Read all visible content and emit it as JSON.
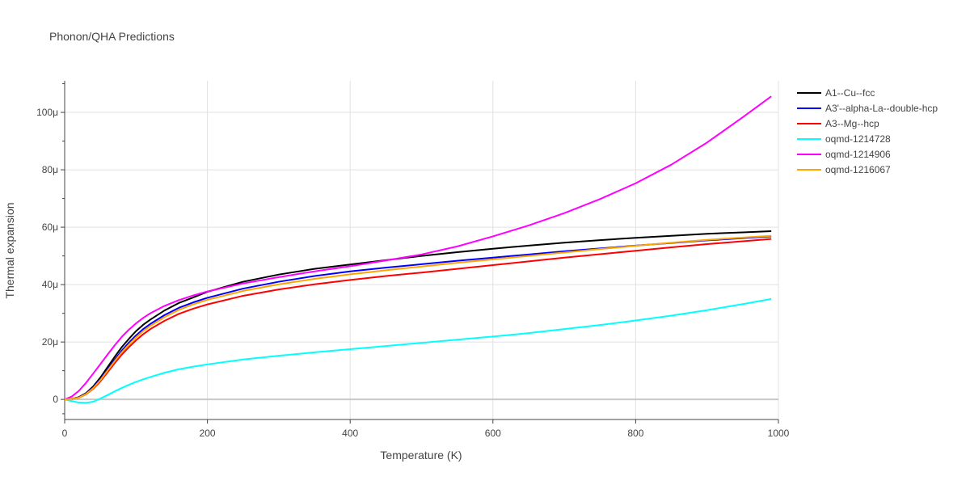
{
  "chart_data": {
    "type": "line",
    "title": "Phonon/QHA Predictions",
    "xlabel": "Temperature (K)",
    "ylabel": "Thermal expansion",
    "xlim": [
      0,
      1000
    ],
    "ylim": [
      -7,
      111
    ],
    "x_ticks": [
      0,
      200,
      400,
      600,
      800,
      1000
    ],
    "x_tick_labels": [
      "0",
      "200",
      "400",
      "600",
      "800",
      "1000"
    ],
    "y_ticks": [
      0,
      20,
      40,
      60,
      80,
      100
    ],
    "y_tick_labels": [
      "0",
      "20μ",
      "40μ",
      "60μ",
      "80μ",
      "100μ"
    ],
    "y_minor_ticks": [
      -5,
      10,
      30,
      50,
      70,
      90,
      110
    ],
    "grid": true,
    "legend_position": "right",
    "series": [
      {
        "name": "A1--Cu--fcc",
        "color": "#000000",
        "x": [
          0,
          10,
          20,
          30,
          40,
          50,
          60,
          70,
          80,
          90,
          100,
          110,
          120,
          140,
          160,
          180,
          200,
          250,
          300,
          350,
          400,
          450,
          500,
          550,
          600,
          650,
          700,
          750,
          800,
          850,
          900,
          950,
          990
        ],
        "y": [
          0,
          0.2,
          0.8,
          2.2,
          4.5,
          7.6,
          11.2,
          14.8,
          18.2,
          21.1,
          23.8,
          26.0,
          27.8,
          31.0,
          33.6,
          35.5,
          37.5,
          41.0,
          43.5,
          45.5,
          47.0,
          48.5,
          50.0,
          51.3,
          52.5,
          53.6,
          54.6,
          55.5,
          56.3,
          57.0,
          57.7,
          58.2,
          58.6
        ]
      },
      {
        "name": "A3'--alpha-La--double-hcp",
        "color": "#0000ff",
        "x": [
          0,
          10,
          20,
          30,
          40,
          50,
          60,
          70,
          80,
          90,
          100,
          110,
          120,
          140,
          160,
          180,
          200,
          250,
          300,
          350,
          400,
          450,
          500,
          550,
          600,
          650,
          700,
          750,
          800,
          850,
          900,
          950,
          990
        ],
        "y": [
          0,
          0.2,
          0.7,
          2.0,
          4.1,
          7.0,
          10.4,
          13.8,
          17.0,
          19.8,
          22.3,
          24.5,
          26.3,
          29.4,
          31.9,
          33.8,
          35.4,
          38.6,
          41.0,
          43.0,
          44.6,
          45.9,
          47.1,
          48.3,
          49.4,
          50.5,
          51.6,
          52.6,
          53.6,
          54.5,
          55.4,
          56.2,
          56.8
        ]
      },
      {
        "name": "A3--Mg--hcp",
        "color": "#ff0000",
        "x": [
          0,
          10,
          20,
          30,
          40,
          50,
          60,
          70,
          80,
          90,
          100,
          110,
          120,
          140,
          160,
          180,
          200,
          250,
          300,
          350,
          400,
          450,
          500,
          550,
          600,
          650,
          700,
          750,
          800,
          850,
          900,
          950,
          990
        ],
        "y": [
          0,
          0.2,
          0.6,
          1.8,
          3.7,
          6.3,
          9.4,
          12.6,
          15.6,
          18.2,
          20.6,
          22.7,
          24.5,
          27.4,
          29.8,
          31.6,
          33.1,
          36.1,
          38.3,
          40.1,
          41.6,
          43.0,
          44.2,
          45.5,
          46.8,
          48.1,
          49.4,
          50.6,
          51.8,
          53.0,
          54.1,
          55.1,
          55.9
        ]
      },
      {
        "name": "oqmd-1214728",
        "color": "#00ffff",
        "x": [
          0,
          10,
          20,
          30,
          40,
          50,
          60,
          70,
          80,
          90,
          100,
          110,
          120,
          140,
          160,
          180,
          200,
          250,
          300,
          350,
          400,
          450,
          500,
          550,
          600,
          650,
          700,
          750,
          800,
          850,
          900,
          950,
          990
        ],
        "y": [
          0,
          -0.6,
          -1.1,
          -1.2,
          -0.8,
          0.3,
          1.5,
          2.8,
          4.0,
          5.1,
          6.1,
          7.0,
          7.8,
          9.3,
          10.5,
          11.4,
          12.2,
          13.9,
          15.2,
          16.4,
          17.5,
          18.6,
          19.7,
          20.8,
          21.9,
          23.1,
          24.5,
          25.9,
          27.5,
          29.2,
          31.1,
          33.2,
          35.0
        ]
      },
      {
        "name": "oqmd-1214906",
        "color": "#ff00ff",
        "x": [
          0,
          10,
          20,
          30,
          40,
          50,
          60,
          70,
          80,
          90,
          100,
          110,
          120,
          140,
          160,
          180,
          200,
          250,
          300,
          350,
          400,
          450,
          500,
          550,
          600,
          650,
          700,
          750,
          800,
          850,
          900,
          950,
          990
        ],
        "y": [
          0,
          1.0,
          3.0,
          5.8,
          9.0,
          12.3,
          15.6,
          18.8,
          21.8,
          24.3,
          26.5,
          28.4,
          30.0,
          32.6,
          34.6,
          36.2,
          37.6,
          40.4,
          42.6,
          44.6,
          46.4,
          48.4,
          50.5,
          53.3,
          56.8,
          60.6,
          64.9,
          69.8,
          75.3,
          81.8,
          89.5,
          98.3,
          105.6
        ]
      },
      {
        "name": "oqmd-1216067",
        "color": "#ffa500",
        "x": [
          0,
          10,
          20,
          30,
          40,
          50,
          60,
          70,
          80,
          90,
          100,
          110,
          120,
          140,
          160,
          180,
          200,
          250,
          300,
          350,
          400,
          450,
          500,
          550,
          600,
          650,
          700,
          750,
          800,
          850,
          900,
          950,
          990
        ],
        "y": [
          0,
          0.2,
          0.6,
          1.9,
          3.9,
          6.7,
          10.0,
          13.3,
          16.4,
          19.1,
          21.6,
          23.8,
          25.6,
          28.7,
          31.2,
          33.1,
          34.7,
          37.8,
          40.1,
          42.0,
          43.6,
          45.0,
          46.3,
          47.6,
          48.8,
          50.0,
          51.2,
          52.4,
          53.5,
          54.6,
          55.6,
          56.4,
          57.0
        ]
      }
    ]
  }
}
